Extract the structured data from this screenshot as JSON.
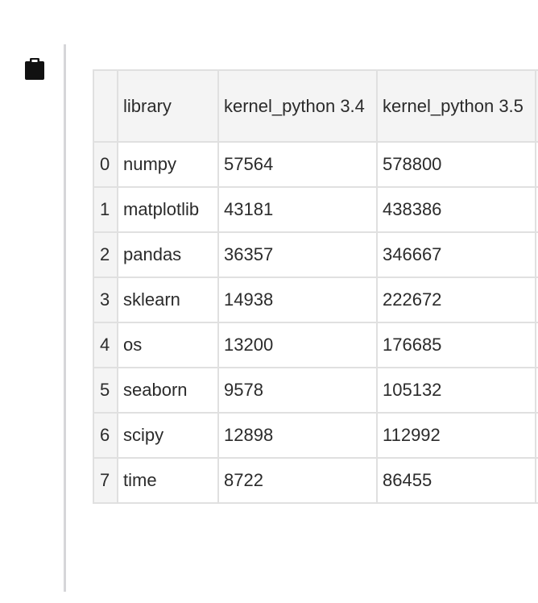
{
  "toolbar": {
    "clipboard_icon": "clipboard-icon"
  },
  "table": {
    "columns": [
      "",
      "library",
      "kernel_python 3.4",
      "kernel_python 3.5",
      ""
    ],
    "rows": [
      {
        "index": "0",
        "library": "numpy",
        "k34": "57564",
        "k35": "578800"
      },
      {
        "index": "1",
        "library": "matplotlib",
        "k34": "43181",
        "k35": "438386"
      },
      {
        "index": "2",
        "library": "pandas",
        "k34": "36357",
        "k35": "346667"
      },
      {
        "index": "3",
        "library": "sklearn",
        "k34": "14938",
        "k35": "222672"
      },
      {
        "index": "4",
        "library": "os",
        "k34": "13200",
        "k35": "176685"
      },
      {
        "index": "5",
        "library": "seaborn",
        "k34": "9578",
        "k35": "105132"
      },
      {
        "index": "6",
        "library": "scipy",
        "k34": "12898",
        "k35": "112992"
      },
      {
        "index": "7",
        "library": "time",
        "k34": "8722",
        "k35": "86455"
      }
    ]
  }
}
